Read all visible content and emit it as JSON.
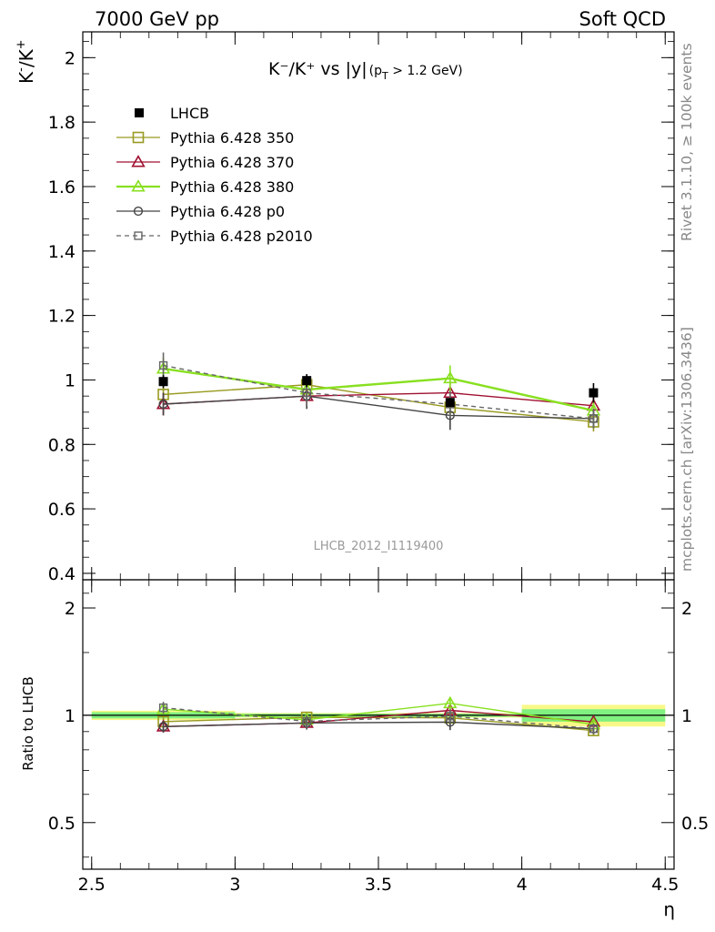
{
  "header": {
    "left": "7000 GeV pp",
    "right": "Soft QCD"
  },
  "side_labels": {
    "rivet": "Rivet 3.1.10, ≥ 100k events",
    "mcplots": "mcplots.cern.ch [arXiv:1306.3436]"
  },
  "chart_data": {
    "type": "line",
    "title": {
      "main": "K⁻/K⁺ vs |y|",
      "sub": "(p",
      "sub_index": "T",
      "sub_tail": " > 1.2 GeV)"
    },
    "ylabel": {
      "base": "K",
      "sup1": "-",
      "mid": "/K",
      "sup2": "+"
    },
    "xlabel": "η",
    "ratio_ylabel": "Ratio to LHCB",
    "watermark": "LHCB_2012_I1119400",
    "xlim": [
      2.5,
      4.5
    ],
    "ylim": [
      0.38,
      2.08
    ],
    "ratio_ylim": [
      0.37,
      2.4
    ],
    "x_ticks": [
      "2.5",
      "3",
      "3.5",
      "4",
      "4.5"
    ],
    "x_tick_values": [
      2.5,
      3,
      3.5,
      4,
      4.5
    ],
    "y_ticks": [
      "0.4",
      "0.6",
      "0.8",
      "1",
      "1.2",
      "1.4",
      "1.6",
      "1.8",
      "2"
    ],
    "y_tick_values": [
      0.4,
      0.6,
      0.8,
      1.0,
      1.2,
      1.4,
      1.6,
      1.8,
      2.0
    ],
    "ratio_ticks": [
      "0.5",
      "1",
      "2"
    ],
    "ratio_tick_values": [
      0.5,
      1,
      2
    ],
    "bin_edges": [
      2.5,
      3.0,
      3.5,
      4.0,
      4.5
    ],
    "x": [
      2.75,
      3.25,
      3.75,
      4.25
    ],
    "legend_position": "top-left",
    "data": {
      "name": "LHCB",
      "values": [
        0.995,
        0.998,
        0.93,
        0.96
      ],
      "errors": [
        0.02,
        0.02,
        0.01,
        0.03
      ],
      "band_inner": [
        0.02,
        0.01,
        0.01,
        0.04
      ],
      "band_outer": [
        0.03,
        0.015,
        0.015,
        0.07
      ]
    },
    "series": [
      {
        "name": "Pythia 6.428 350",
        "color": "#9a9a22",
        "marker": "square-open",
        "dash": "solid",
        "values": [
          0.955,
          0.985,
          0.915,
          0.87
        ],
        "errors": [
          0.03,
          0.03,
          0.035,
          0.03
        ]
      },
      {
        "name": "Pythia 6.428 370",
        "color": "#a01030",
        "marker": "triangle-open",
        "dash": "solid",
        "values": [
          0.925,
          0.95,
          0.96,
          0.92
        ],
        "errors": [
          0.035,
          0.03,
          0.035,
          0.03
        ]
      },
      {
        "name": "Pythia 6.428 380",
        "color": "#88e020",
        "marker": "triangle-open",
        "dash": "solid",
        "values": [
          1.035,
          0.97,
          1.005,
          0.905
        ],
        "errors": [
          0.035,
          0.03,
          0.04,
          0.03
        ]
      },
      {
        "name": "Pythia 6.428 p0",
        "color": "#444444",
        "marker": "circle-open",
        "dash": "solid",
        "values": [
          0.925,
          0.95,
          0.89,
          0.88
        ],
        "errors": [
          0.035,
          0.04,
          0.045,
          0.03
        ]
      },
      {
        "name": "Pythia 6.428 p2010",
        "color": "#666666",
        "marker": "square-open-small",
        "dash": "dashed",
        "values": [
          1.045,
          0.96,
          0.925,
          0.88
        ],
        "errors": [
          0.04,
          0.04,
          0.04,
          0.03
        ]
      }
    ],
    "colors": {
      "band_inner": "#80f080",
      "band_outer": "#f8f888",
      "axis": "#000000",
      "watermark": "#999999",
      "side_label": "#888888"
    }
  }
}
